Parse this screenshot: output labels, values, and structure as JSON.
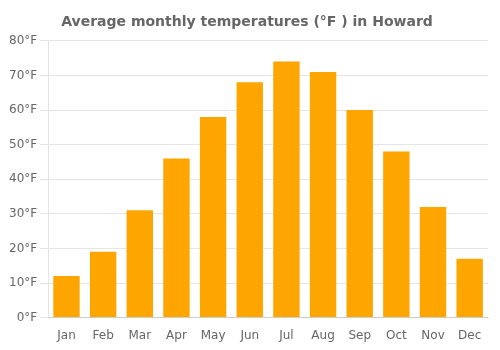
{
  "chart_data": {
    "type": "bar",
    "title": "Average monthly temperatures (°F ) in Howard",
    "categories": [
      "Jan",
      "Feb",
      "Mar",
      "Apr",
      "May",
      "Jun",
      "Jul",
      "Aug",
      "Sep",
      "Oct",
      "Nov",
      "Dec"
    ],
    "values": [
      12,
      19,
      31,
      46,
      58,
      68,
      74,
      71,
      60,
      48,
      32,
      17
    ],
    "color": "#FFA500",
    "ylim": [
      0,
      80
    ],
    "yticks": [
      {
        "value": 0,
        "label": "0°F"
      },
      {
        "value": 10,
        "label": "10°F"
      },
      {
        "value": 20,
        "label": "20°F"
      },
      {
        "value": 30,
        "label": "30°F"
      },
      {
        "value": 40,
        "label": "40°F"
      },
      {
        "value": 50,
        "label": "50°F"
      },
      {
        "value": 60,
        "label": "60°F"
      },
      {
        "value": 70,
        "label": "70°F"
      },
      {
        "value": 80,
        "label": "80°F"
      }
    ],
    "grid": true
  }
}
